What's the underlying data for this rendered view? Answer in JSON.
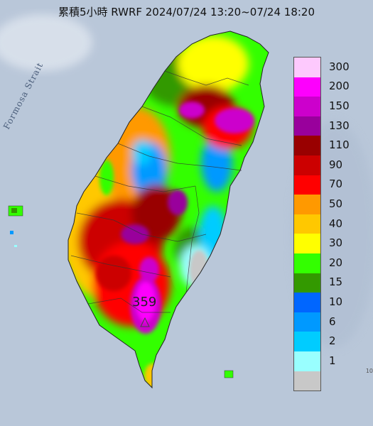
{
  "title": "累積5小時 RWRF 2024/07/24 13:20~07/24 18:20",
  "strait_label": "Formosa Strait",
  "max_value": "359",
  "corner_mark": "10",
  "legend": [
    {
      "label": "300",
      "color": "#fdc9fd"
    },
    {
      "label": "200",
      "color": "#fd00fd"
    },
    {
      "label": "150",
      "color": "#cc00cc"
    },
    {
      "label": "130",
      "color": "#99009c"
    },
    {
      "label": "110",
      "color": "#990000"
    },
    {
      "label": "90",
      "color": "#cc0000"
    },
    {
      "label": "70",
      "color": "#ff0000"
    },
    {
      "label": "50",
      "color": "#ff9900"
    },
    {
      "label": "40",
      "color": "#ffc800"
    },
    {
      "label": "30",
      "color": "#ffff00"
    },
    {
      "label": "20",
      "color": "#33ff00"
    },
    {
      "label": "15",
      "color": "#339900"
    },
    {
      "label": "10",
      "color": "#0066ff"
    },
    {
      "label": "6",
      "color": "#0099ff"
    },
    {
      "label": "2",
      "color": "#00ccff"
    },
    {
      "label": "1",
      "color": "#99ffff"
    },
    {
      "label": "",
      "color": "#c8c8c8"
    }
  ]
}
